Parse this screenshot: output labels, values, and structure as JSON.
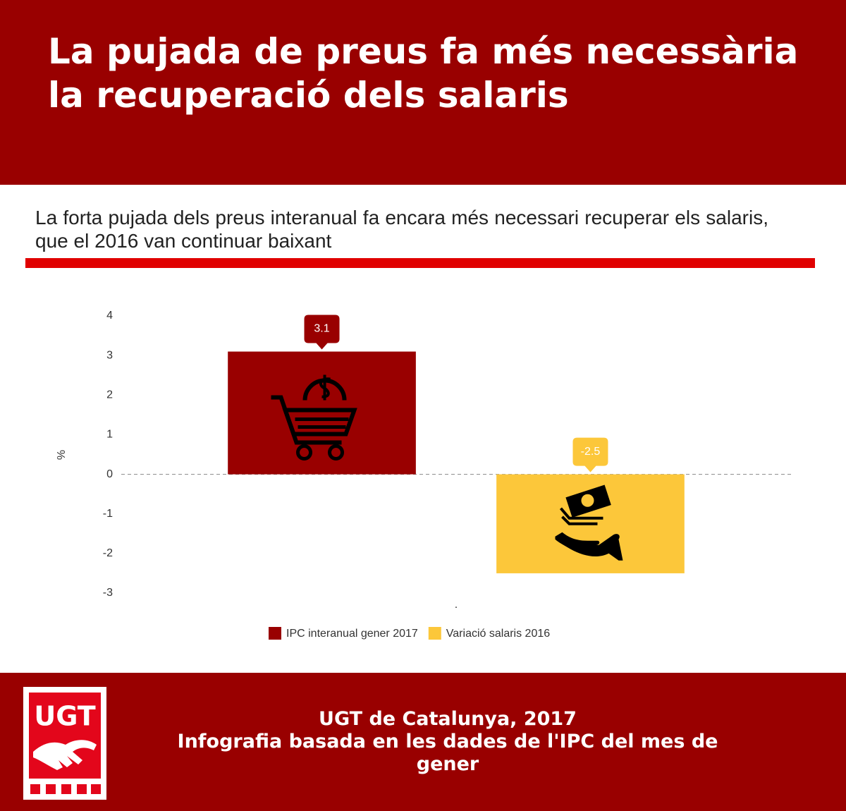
{
  "title": "La pujada de preus fa més necessària la recuperació dels salaris",
  "subtitle": "La forta pujada dels preus interanual fa encara més necessari recuperar els salaris, que el 2016 van continuar baixant",
  "chart_data": {
    "type": "bar",
    "categories": [
      "."
    ],
    "series": [
      {
        "name": "IPC interanual gener 2017",
        "color": "#990000",
        "values": [
          3.1
        ]
      },
      {
        "name": "Variació salaris 2016",
        "color": "#fcc73a",
        "values": [
          -2.5
        ]
      }
    ],
    "ylabel": "%",
    "ylim": [
      -3,
      4
    ],
    "yticks": [
      -3,
      -2,
      -1,
      0,
      1,
      2,
      3,
      4
    ],
    "grid": false,
    "legend": "bottom"
  },
  "footer": {
    "logo": "UGT",
    "line1": "UGT de Catalunya, 2017",
    "line2": "Infografia basada en les dades de l'IPC del mes de gener"
  }
}
